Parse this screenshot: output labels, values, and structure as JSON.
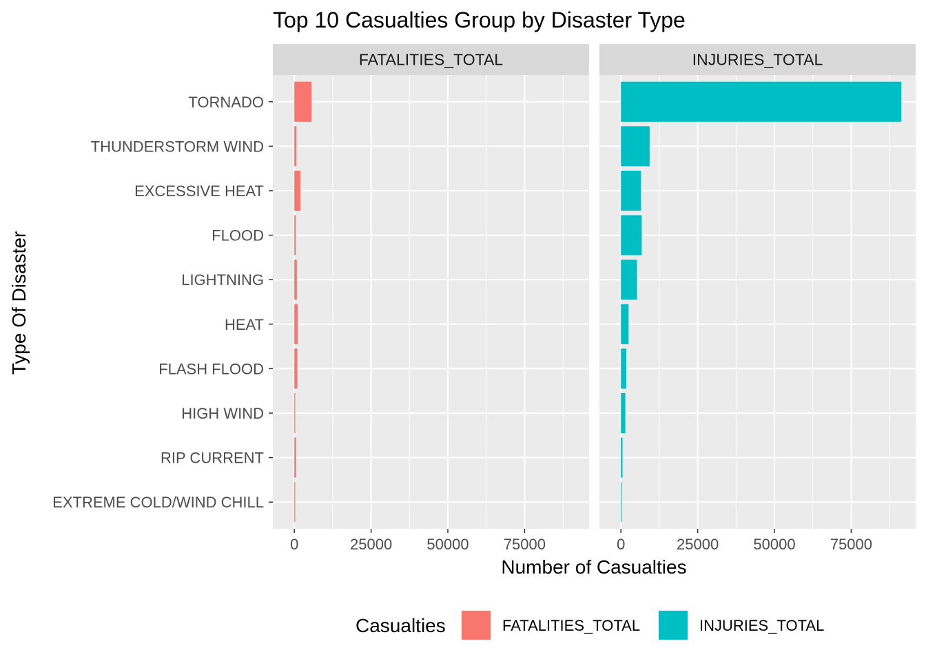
{
  "chart_data": {
    "type": "bar",
    "orientation": "horizontal",
    "title": "Top 10 Casualties Group by Disaster Type",
    "xlabel": "Number of Casualties",
    "ylabel": "Type Of Disaster",
    "xlim": [
      -7000,
      96000
    ],
    "x_ticks": [
      0,
      25000,
      50000,
      75000
    ],
    "x_tick_labels": [
      "0",
      "25000",
      "50000",
      "75000"
    ],
    "grid": true,
    "legend_position": "bottom",
    "legend_title": "Casualties",
    "categories": [
      "TORNADO",
      "THUNDERSTORM WIND",
      "EXCESSIVE HEAT",
      "FLOOD",
      "LIGHTNING",
      "HEAT",
      "FLASH FLOOD",
      "HIGH WIND",
      "RIP CURRENT",
      "EXTREME COLD/WIND CHILL"
    ],
    "series": [
      {
        "name": "FATALITIES_TOTAL",
        "color": "#F8766D",
        "values": [
          5633,
          701,
          2018,
          470,
          816,
          1118,
          978,
          283,
          572,
          285
        ]
      },
      {
        "name": "INJURIES_TOTAL",
        "color": "#00BFC4",
        "values": [
          91346,
          9353,
          6525,
          6789,
          5230,
          2494,
          1777,
          1439,
          529,
          255
        ]
      }
    ]
  }
}
